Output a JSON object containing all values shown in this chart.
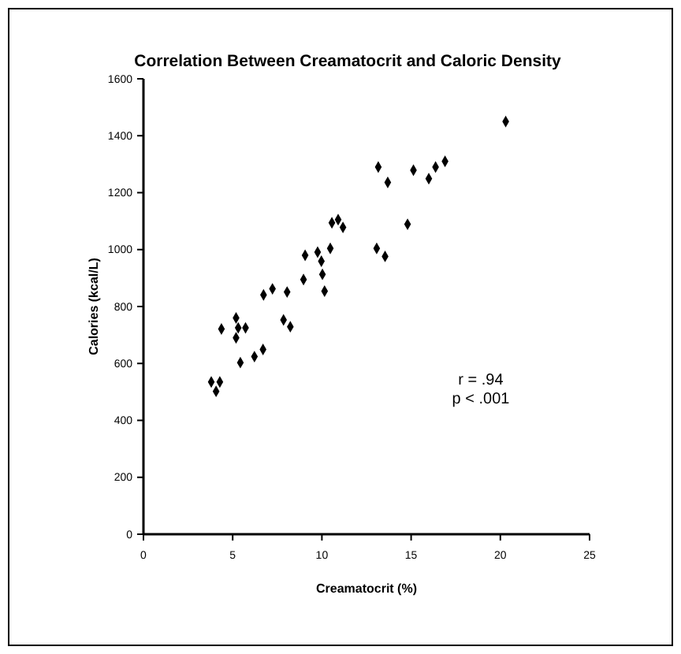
{
  "chart_data": {
    "type": "scatter",
    "title": "Correlation Between Creamatocrit and Caloric Density",
    "xlabel": "Creamatocrit (%)",
    "ylabel": "Calories (kcal/L)",
    "annotations": [
      "r = .94",
      "p < .001"
    ],
    "series": [
      {
        "color": "#000000",
        "x": [
          3.8,
          4.28,
          4.07,
          4.37,
          5.19,
          5.19,
          5.31,
          5.72,
          5.43,
          6.22,
          6.7,
          6.73,
          7.23,
          7.85,
          8.23,
          8.05,
          8.97,
          9.06,
          9.76,
          9.97,
          10.03,
          10.15,
          10.47,
          10.56,
          10.91,
          11.18,
          13.07,
          13.16,
          13.69,
          13.54,
          14.8,
          15.13,
          15.99,
          16.37,
          16.9,
          20.3
        ],
        "values": [
          535,
          535,
          502,
          721,
          760,
          690,
          725,
          725,
          603,
          624,
          649,
          841,
          862,
          753,
          729,
          851,
          895,
          980,
          991,
          959,
          913,
          854,
          1004,
          1094,
          1105,
          1078,
          1004,
          1290,
          1236,
          976,
          1089,
          1279,
          1249,
          1290,
          1310,
          1450
        ]
      }
    ],
    "marker": "diamond",
    "grid": false,
    "xlim": [
      0,
      25
    ],
    "xticks": [
      0,
      5,
      10,
      15,
      20,
      25
    ],
    "ylim": [
      0,
      1600
    ],
    "yticks": [
      0,
      200,
      400,
      600,
      800,
      1000,
      1200,
      1400,
      1600
    ]
  }
}
